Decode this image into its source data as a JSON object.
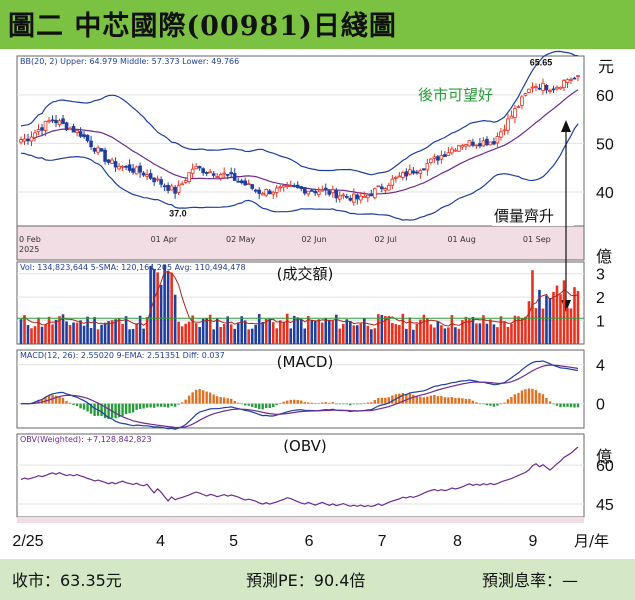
{
  "title": "圖二  中芯國際(00981)日綫圖",
  "footer": {
    "close": "收市：63.35元",
    "pe": "預測PE：90.4倍",
    "yield": "預測息率：—"
  },
  "colors": {
    "header_bg": "#7cc242",
    "footer_bg": "#d4e8c5",
    "up": "#e8311f",
    "down": "#1f3f9e",
    "bollinger": "#1f3f9e",
    "ma": "#6c2c91",
    "annotation_green": "#2a9d3a"
  },
  "chart_data": [
    {
      "type": "line",
      "subtype": "candlestick_with_bollinger_bands",
      "legend_text": "BB(20, 2)  Upper: 64.979 Middle: 57.373 Lower: 49.766",
      "unit": "元",
      "y_ticks": [
        40,
        50,
        60
      ],
      "ylim": [
        33,
        68
      ],
      "x_date_labels": [
        "0 Feb\n2025",
        "01 Apr",
        "02 May",
        "02 Jun",
        "02 Jul",
        "01 Aug",
        "01 Sep"
      ],
      "annotations": [
        {
          "text": "37.0",
          "x": "2025-04-07",
          "y": 37.0
        },
        {
          "text": "65.65",
          "x": "2025-09-03",
          "y": 65.65
        },
        {
          "text": "後市可望好"
        },
        {
          "text": "價量齊升"
        }
      ],
      "series": [
        {
          "values": [
            [
              2025,
              2,
              3,
              50.5,
              51.5,
              49.0,
              50.8
            ],
            [
              2025,
              2,
              14,
              53.0,
              56.0,
              52.0,
              55.0
            ],
            [
              2025,
              2,
              26,
              53.5,
              55.0,
              51.5,
              52.0
            ],
            [
              2025,
              3,
              10,
              48.0,
              49.0,
              45.5,
              46.0
            ],
            [
              2025,
              3,
              24,
              47.0,
              48.0,
              43.5,
              44.0
            ],
            [
              2025,
              4,
              7,
              41.0,
              42.0,
              37.0,
              40.0
            ],
            [
              2025,
              4,
              14,
              44.5,
              46.0,
              43.0,
              45.0
            ],
            [
              2025,
              4,
              28,
              43.0,
              44.5,
              42.5,
              43.5
            ],
            [
              2025,
              5,
              12,
              41.0,
              42.0,
              39.5,
              40.0
            ],
            [
              2025,
              5,
              26,
              41.0,
              41.5,
              40.0,
              40.8
            ],
            [
              2025,
              6,
              9,
              40.5,
              41.0,
              39.5,
              40.0
            ],
            [
              2025,
              6,
              23,
              39.0,
              39.5,
              38.0,
              38.5
            ],
            [
              2025,
              7,
              7,
              41.0,
              43.0,
              40.5,
              42.5
            ],
            [
              2025,
              7,
              21,
              46.0,
              47.0,
              45.0,
              45.8
            ],
            [
              2025,
              8,
              4,
              49.0,
              50.5,
              48.0,
              50.0
            ],
            [
              2025,
              8,
              18,
              51.0,
              52.0,
              49.5,
              50.5
            ],
            [
              2025,
              8,
              29,
              56.0,
              59.0,
              55.5,
              58.5
            ],
            [
              2025,
              9,
              3,
              64.0,
              65.65,
              61.0,
              62.0
            ],
            [
              2025,
              9,
              12,
              60.0,
              62.0,
              59.0,
              61.5
            ],
            [
              2025,
              9,
              18,
              62.0,
              64.0,
              61.5,
              63.35
            ]
          ]
        }
      ]
    },
    {
      "type": "bar",
      "name": "(成交額)",
      "legend_text": "Vol: 134,823,644  5-SMA: 120,164,205  Avg: 110,494,478",
      "unit": "億",
      "y_ticks": [
        1,
        2,
        3
      ],
      "ylim": [
        0,
        3.5
      ]
    },
    {
      "type": "line",
      "name": "(MACD)",
      "legend_text": "MACD(12, 26): 2.55020  9-EMA: 2.51351  Diff: 0.037",
      "y_ticks": [
        0,
        4
      ],
      "ylim": [
        -2.5,
        5.5
      ]
    },
    {
      "type": "line",
      "name": "(OBV)",
      "legend_text": "OBV(Weighted): +7,128,842,823",
      "unit": "億",
      "y_ticks": [
        45,
        60
      ],
      "ylim": [
        40,
        72
      ]
    }
  ],
  "x_axis": {
    "labels": [
      "2/25",
      "4",
      "5",
      "6",
      "7",
      "8",
      "9"
    ],
    "unit": "月/年"
  }
}
